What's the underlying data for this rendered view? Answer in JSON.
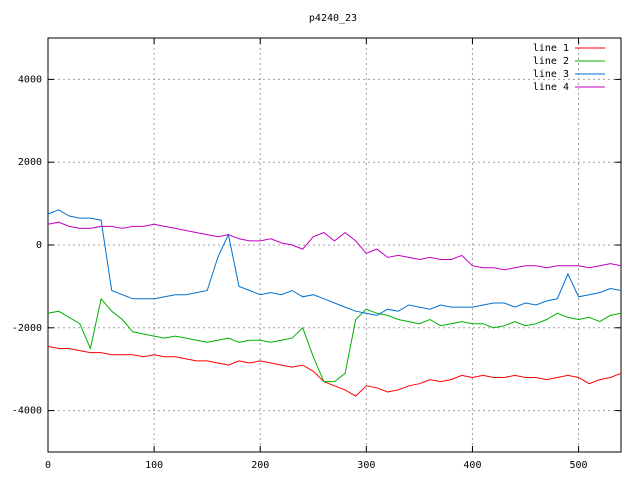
{
  "chart_data": {
    "type": "line",
    "title": "p4240_23",
    "x": [
      0,
      10,
      20,
      30,
      40,
      50,
      60,
      70,
      80,
      90,
      100,
      110,
      120,
      130,
      140,
      150,
      160,
      170,
      180,
      190,
      200,
      210,
      220,
      230,
      240,
      250,
      260,
      270,
      280,
      290,
      300,
      310,
      320,
      330,
      340,
      350,
      360,
      370,
      380,
      390,
      400,
      410,
      420,
      430,
      440,
      450,
      460,
      470,
      480,
      490,
      500,
      510,
      520,
      530,
      540
    ],
    "series": [
      {
        "name": "line 1",
        "color": "#ff0000",
        "values": [
          -2450,
          -2500,
          -2500,
          -2550,
          -2600,
          -2600,
          -2650,
          -2650,
          -2650,
          -2700,
          -2650,
          -2700,
          -2700,
          -2750,
          -2800,
          -2800,
          -2850,
          -2900,
          -2800,
          -2850,
          -2800,
          -2850,
          -2900,
          -2950,
          -2900,
          -3050,
          -3300,
          -3400,
          -3500,
          -3650,
          -3400,
          -3450,
          -3550,
          -3500,
          -3400,
          -3350,
          -3250,
          -3300,
          -3250,
          -3150,
          -3200,
          -3150,
          -3200,
          -3200,
          -3150,
          -3200,
          -3200,
          -3250,
          -3200,
          -3150,
          -3200,
          -3350,
          -3250,
          -3200,
          -3100
        ]
      },
      {
        "name": "line 2",
        "color": "#00b000",
        "values": [
          -1650,
          -1600,
          -1750,
          -1900,
          -2500,
          -1300,
          -1600,
          -1800,
          -2100,
          -2150,
          -2200,
          -2250,
          -2200,
          -2250,
          -2300,
          -2350,
          -2300,
          -2250,
          -2350,
          -2300,
          -2300,
          -2350,
          -2300,
          -2250,
          -2000,
          -2700,
          -3300,
          -3300,
          -3100,
          -1800,
          -1550,
          -1650,
          -1700,
          -1800,
          -1850,
          -1900,
          -1800,
          -1950,
          -1900,
          -1850,
          -1900,
          -1900,
          -2000,
          -1950,
          -1850,
          -1950,
          -1900,
          -1800,
          -1650,
          -1750,
          -1800,
          -1750,
          -1850,
          -1700,
          -1650
        ]
      },
      {
        "name": "line 3",
        "color": "#0070d0",
        "values": [
          750,
          850,
          700,
          650,
          650,
          600,
          -1100,
          -1200,
          -1300,
          -1300,
          -1300,
          -1250,
          -1200,
          -1200,
          -1150,
          -1100,
          -300,
          250,
          -1000,
          -1100,
          -1200,
          -1150,
          -1200,
          -1100,
          -1250,
          -1200,
          -1300,
          -1400,
          -1500,
          -1600,
          -1650,
          -1700,
          -1550,
          -1600,
          -1450,
          -1500,
          -1550,
          -1450,
          -1500,
          -1500,
          -1500,
          -1450,
          -1400,
          -1400,
          -1500,
          -1400,
          -1450,
          -1350,
          -1300,
          -700,
          -1250,
          -1200,
          -1150,
          -1050,
          -1100
        ]
      },
      {
        "name": "line 4",
        "color": "#c000c0",
        "values": [
          500,
          550,
          450,
          400,
          400,
          450,
          450,
          400,
          450,
          450,
          500,
          450,
          400,
          350,
          300,
          250,
          200,
          250,
          150,
          100,
          100,
          150,
          50,
          0,
          -100,
          200,
          300,
          100,
          300,
          100,
          -200,
          -100,
          -300,
          -250,
          -300,
          -350,
          -300,
          -350,
          -350,
          -250,
          -500,
          -550,
          -550,
          -600,
          -550,
          -500,
          -500,
          -550,
          -500,
          -500,
          -500,
          -550,
          -500,
          -450,
          -500
        ]
      }
    ],
    "xlim": [
      0,
      540
    ],
    "ylim": [
      -5000,
      5000
    ],
    "xticks": [
      0,
      100,
      200,
      300,
      400,
      500
    ],
    "yticks": [
      -4000,
      -2000,
      0,
      2000,
      4000
    ],
    "grid": true,
    "legend": "top-right"
  }
}
